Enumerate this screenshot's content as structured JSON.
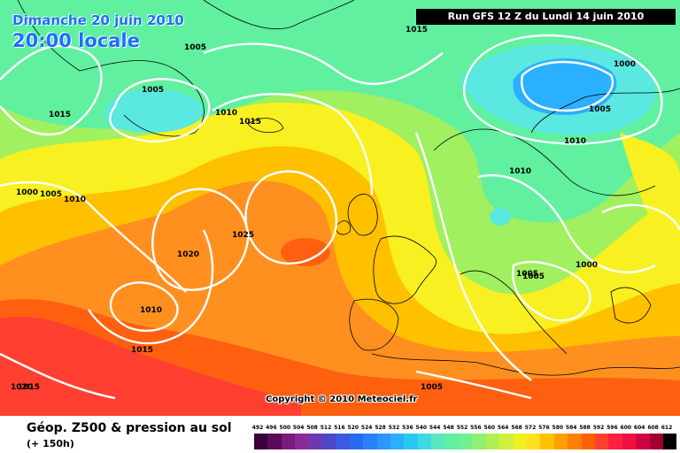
{
  "header": {
    "date": "Dimanche 20 juin 2010",
    "time": "20:00 locale",
    "run": "Run GFS 12 Z du Lundi 14 juin 2010"
  },
  "copyright": "Copyright © 2010 Meteociel.fr",
  "legend": {
    "title": "Géop. Z500 & pression au sol",
    "subtitle": "(+ 150h)",
    "ticks": [
      "492",
      "496",
      "500",
      "504",
      "508",
      "512",
      "516",
      "520",
      "524",
      "528",
      "532",
      "536",
      "540",
      "544",
      "548",
      "552",
      "556",
      "560",
      "564",
      "568",
      "572",
      "576",
      "580",
      "584",
      "588",
      "592",
      "596",
      "600",
      "604",
      "608",
      "612"
    ],
    "colors": [
      "#3a003a",
      "#5a0a5a",
      "#7a1a7a",
      "#8c2a9a",
      "#6a3ab0",
      "#4a48c8",
      "#3a5ae0",
      "#2a6af0",
      "#2a80ff",
      "#2a98ff",
      "#2ab0ff",
      "#2ac8f0",
      "#40d8e0",
      "#5ae8c0",
      "#60f0a0",
      "#70f090",
      "#90f070",
      "#b0f050",
      "#d0f040",
      "#f0f020",
      "#ffe020",
      "#ffc000",
      "#ffa000",
      "#ff8000",
      "#ff6000",
      "#ff4030",
      "#ff2040",
      "#f01040",
      "#d00040",
      "#a00030",
      "#000000"
    ]
  },
  "isobars": [
    {
      "value": "1005"
    },
    {
      "value": "1005"
    },
    {
      "value": "1015"
    },
    {
      "value": "1015"
    },
    {
      "value": "1010"
    },
    {
      "value": "1015"
    },
    {
      "value": "1000"
    },
    {
      "value": "1005"
    },
    {
      "value": "1010"
    },
    {
      "value": "1000"
    },
    {
      "value": "1005"
    },
    {
      "value": "1010"
    },
    {
      "value": "1010"
    },
    {
      "value": "1025"
    },
    {
      "value": "1020"
    },
    {
      "value": "1010"
    },
    {
      "value": "1015"
    },
    {
      "value": "1020"
    },
    {
      "value": "1005"
    },
    {
      "value": "1000"
    },
    {
      "value": "1005"
    },
    {
      "value": "1005"
    },
    {
      "value": "1015"
    }
  ],
  "field_colors": {
    "blue": "#2ab0ff",
    "cyan": "#5ae8e0",
    "green": "#60f0a0",
    "lightgreen": "#a0f060",
    "yellow": "#f8f020",
    "lightorange": "#ffc000",
    "orange": "#ff9020",
    "darkorange": "#ff6010",
    "red": "#ff4030",
    "isobar": "#ffffff",
    "coast": "#000000"
  }
}
